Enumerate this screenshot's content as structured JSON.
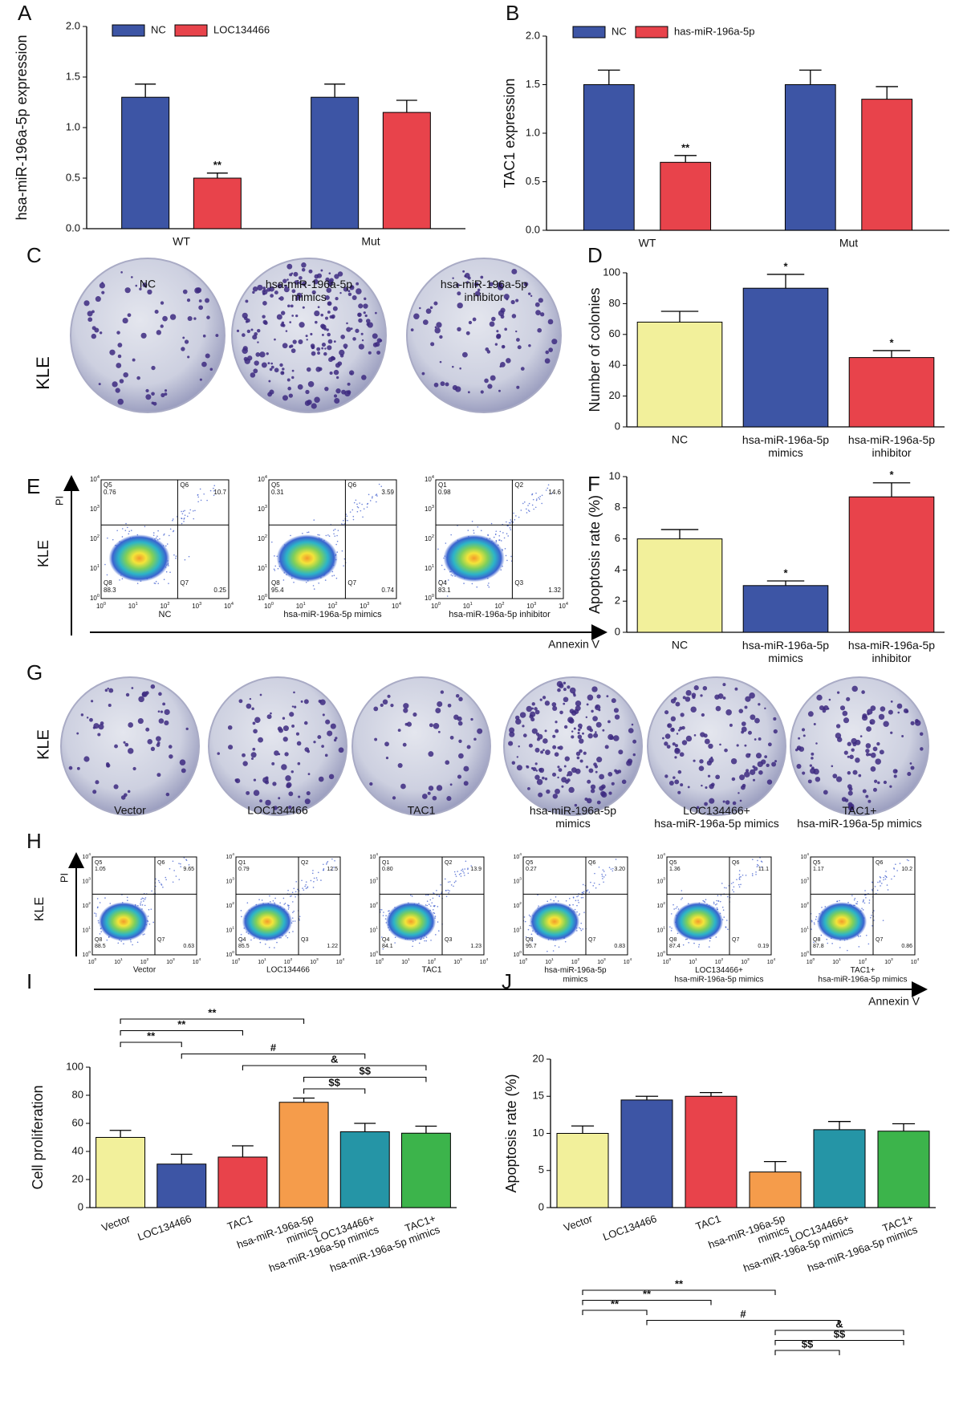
{
  "chart_data": [
    {
      "type": "grouped-bar",
      "panel_label": "A",
      "ylabel": "hsa-miR-196a-5p expression",
      "categories": [
        "WT",
        "Mut"
      ],
      "series": [
        {
          "name": "NC",
          "color": "#3d55a5",
          "values": [
            1.3,
            1.3
          ],
          "errors": [
            0.13,
            0.13
          ],
          "significance": [
            null,
            null
          ]
        },
        {
          "name": "LOC134466",
          "color": "#e8434b",
          "values": [
            0.5,
            1.15
          ],
          "errors": [
            0.05,
            0.12
          ],
          "significance": [
            "**",
            null
          ]
        }
      ],
      "ylim": [
        0,
        2
      ],
      "yticks": [
        {
          "value": 0,
          "label": "0.0"
        },
        0.5,
        {
          "value": 1,
          "label": "1.0"
        },
        1.5,
        {
          "value": 2,
          "label": "2.0"
        }
      ],
      "legend": "top"
    },
    {
      "type": "grouped-bar",
      "panel_label": "B",
      "ylabel": "TAC1 expression",
      "categories": [
        "WT",
        "Mut"
      ],
      "series": [
        {
          "name": "NC",
          "color": "#3d55a5",
          "values": [
            1.5,
            1.5
          ],
          "errors": [
            0.15,
            0.15
          ],
          "significance": [
            null,
            null
          ]
        },
        {
          "name": "has-miR-196a-5p",
          "color": "#e8434b",
          "values": [
            0.7,
            1.35
          ],
          "errors": [
            0.07,
            0.13
          ],
          "significance": [
            "**",
            null
          ]
        }
      ],
      "ylim": [
        0,
        2
      ],
      "yticks": [
        {
          "value": 0,
          "label": "0.0"
        },
        0.5,
        {
          "value": 1,
          "label": "1.0"
        },
        1.5,
        {
          "value": 2,
          "label": "2.0"
        }
      ],
      "legend": "top"
    },
    {
      "type": "bar",
      "panel_label": "D",
      "ylabel": "Number of colonies",
      "categories": [
        "NC",
        "hsa-miR-196a-5p\nmimics",
        "hsa-miR-196a-5p\ninhibitor"
      ],
      "values": [
        68,
        90,
        45
      ],
      "errors": [
        7,
        9,
        4.5
      ],
      "significance": [
        null,
        "*",
        "*"
      ],
      "colors": [
        "#f2f09b",
        "#3d55a5",
        "#e8434b"
      ],
      "ylim": [
        0,
        100
      ],
      "yticks": [
        0,
        20,
        40,
        60,
        80,
        100
      ]
    },
    {
      "type": "bar",
      "panel_label": "F",
      "ylabel": "Apoptosis rate (%)",
      "categories": [
        "NC",
        "hsa-miR-196a-5p\nmimics",
        "hsa-miR-196a-5p\ninhibitor"
      ],
      "values": [
        6,
        3,
        8.7
      ],
      "errors": [
        0.6,
        0.3,
        0.9
      ],
      "significance": [
        null,
        "*",
        "*"
      ],
      "colors": [
        "#f2f09b",
        "#3d55a5",
        "#e8434b"
      ],
      "ylim": [
        0,
        10
      ],
      "yticks": [
        0,
        2,
        4,
        6,
        8,
        10
      ]
    },
    {
      "type": "bar",
      "panel_label": "I",
      "ylabel": "Cell proliferation",
      "categories": [
        "Vector",
        "LOC134466",
        "TAC1",
        "hsa-miR-196a-5p\nmimics",
        "LOC134466+\nhsa-miR-196a-5p mimics",
        "TAC1+\nhsa-miR-196a-5p mimics"
      ],
      "values": [
        50,
        31,
        36,
        75,
        54,
        53
      ],
      "errors": [
        5,
        7,
        8,
        3,
        6,
        5
      ],
      "significance": [
        null,
        null,
        null,
        null,
        null,
        null
      ],
      "colors": [
        "#f2f09b",
        "#3d55a5",
        "#e8434b",
        "#f59c4b",
        "#2595a6",
        "#3cb44b"
      ],
      "ylim": [
        0,
        100
      ],
      "yticks": [
        0,
        20,
        40,
        60,
        80,
        100
      ],
      "brackets": [
        {
          "from": 0,
          "to": 3,
          "label": "**"
        },
        {
          "from": 0,
          "to": 2,
          "label": "**"
        },
        {
          "from": 0,
          "to": 1,
          "label": "**"
        },
        {
          "from": 1,
          "to": 4,
          "label": "#"
        },
        {
          "from": 2,
          "to": 5,
          "label": "&"
        },
        {
          "from": 3,
          "to": 5,
          "label": "$$"
        },
        {
          "from": 3,
          "to": 4,
          "label": "$$"
        }
      ]
    },
    {
      "type": "bar",
      "panel_label": "J",
      "ylabel": "Apoptosis rate (%)",
      "categories": [
        "Vector",
        "LOC134466",
        "TAC1",
        "hsa-miR-196a-5p\nmimics",
        "LOC134466+\nhsa-miR-196a-5p mimics",
        "TAC1+\nhsa-miR-196a-5p mimics"
      ],
      "values": [
        10,
        14.5,
        15,
        4.8,
        10.5,
        10.3
      ],
      "errors": [
        1,
        0.5,
        0.5,
        1.4,
        1.1,
        1
      ],
      "significance": [
        null,
        null,
        null,
        null,
        null,
        null
      ],
      "colors": [
        "#f2f09b",
        "#3d55a5",
        "#e8434b",
        "#f59c4b",
        "#2595a6",
        "#3cb44b"
      ],
      "ylim": [
        0,
        20
      ],
      "yticks": [
        0,
        5,
        10,
        15,
        20
      ],
      "brackets": [
        {
          "from": 0,
          "to": 3,
          "label": "**"
        },
        {
          "from": 0,
          "to": 2,
          "label": "**"
        },
        {
          "from": 0,
          "to": 1,
          "label": "**"
        },
        {
          "from": 1,
          "to": 4,
          "label": "#"
        },
        {
          "from": 3,
          "to": 5,
          "label": "&"
        },
        {
          "from": 3,
          "to": 5,
          "label": "$$"
        },
        {
          "from": 3,
          "to": 4,
          "label": "$$"
        }
      ]
    }
  ],
  "colonies_C": {
    "panel_label": "C",
    "row_label": "KLE",
    "labels": [
      "NC",
      "hsa-miR-196a-5p\nmimics",
      "hsa-miR-196a-5p\ninhibitor"
    ]
  },
  "colonies_G": {
    "panel_label": "G",
    "row_label": "KLE",
    "labels": [
      "Vector",
      "LOC134466",
      "TAC1",
      "hsa-miR-196a-5p\nmimics",
      "LOC134466+\nhsa-miR-196a-5p mimics",
      "TAC1+\nhsa-miR-196a-5p mimics"
    ]
  },
  "flow_E": {
    "panel_label": "E",
    "row_label": "KLE",
    "y_axis": "PI",
    "x_axis": "Annexin V",
    "tick_base": "10",
    "tick_exponents": [
      "0",
      "1",
      "2",
      "3",
      "4"
    ],
    "plots": [
      {
        "label": "NC",
        "quadrants": [
          {
            "name": "Q5",
            "value": "0.76"
          },
          {
            "name": "Q6",
            "value": "10.7"
          },
          {
            "name": "Q8",
            "value": "88.3"
          },
          {
            "name": "Q7",
            "value": "0.25"
          }
        ]
      },
      {
        "label": "hsa-miR-196a-5p mimics",
        "quadrants": [
          {
            "name": "Q5",
            "value": "0.31"
          },
          {
            "name": "Q6",
            "value": "3.59"
          },
          {
            "name": "Q8",
            "value": "95.4"
          },
          {
            "name": "Q7",
            "value": "0.74"
          }
        ]
      },
      {
        "label": "hsa-miR-196a-5p inhibitor",
        "quadrants": [
          {
            "name": "Q1",
            "value": "0.98"
          },
          {
            "name": "Q2",
            "value": "14.6"
          },
          {
            "name": "Q4",
            "value": "83.1"
          },
          {
            "name": "Q3",
            "value": "1.32"
          }
        ]
      }
    ]
  },
  "flow_H": {
    "panel_label": "H",
    "row_label": "KLE",
    "y_axis": "PI",
    "x_axis": "Annexin V",
    "tick_base": "10",
    "tick_exponents": [
      "0",
      "1",
      "2",
      "3",
      "4"
    ],
    "plots": [
      {
        "label": "Vector",
        "quadrants": [
          {
            "name": "Q5",
            "value": "1.05"
          },
          {
            "name": "Q6",
            "value": "9.65"
          },
          {
            "name": "Q8",
            "value": "88.5"
          },
          {
            "name": "Q7",
            "value": "0.63"
          }
        ]
      },
      {
        "label": "LOC134466",
        "quadrants": [
          {
            "name": "Q1",
            "value": "0.79"
          },
          {
            "name": "Q2",
            "value": "12.5"
          },
          {
            "name": "Q4",
            "value": "85.5"
          },
          {
            "name": "Q3",
            "value": "1.22"
          }
        ]
      },
      {
        "label": "TAC1",
        "quadrants": [
          {
            "name": "Q1",
            "value": "0.80"
          },
          {
            "name": "Q2",
            "value": "13.9"
          },
          {
            "name": "Q4",
            "value": "84.1"
          },
          {
            "name": "Q3",
            "value": "1.23"
          }
        ]
      },
      {
        "label": "hsa-miR-196a-5p\nmimics",
        "quadrants": [
          {
            "name": "Q5",
            "value": "0.27"
          },
          {
            "name": "Q6",
            "value": "3.20"
          },
          {
            "name": "Q8",
            "value": "95.7"
          },
          {
            "name": "Q7",
            "value": "0.83"
          }
        ]
      },
      {
        "label": "LOC134466+\nhsa-miR-196a-5p mimics",
        "quadrants": [
          {
            "name": "Q5",
            "value": "1.36"
          },
          {
            "name": "Q6",
            "value": "11.1"
          },
          {
            "name": "Q8",
            "value": "87.4"
          },
          {
            "name": "Q7",
            "value": "0.19"
          }
        ]
      },
      {
        "label": "TAC1+\nhsa-miR-196a-5p mimics",
        "quadrants": [
          {
            "name": "Q5",
            "value": "1.17"
          },
          {
            "name": "Q6",
            "value": "10.2"
          },
          {
            "name": "Q8",
            "value": "87.8"
          },
          {
            "name": "Q7",
            "value": "0.86"
          }
        ]
      }
    ]
  }
}
